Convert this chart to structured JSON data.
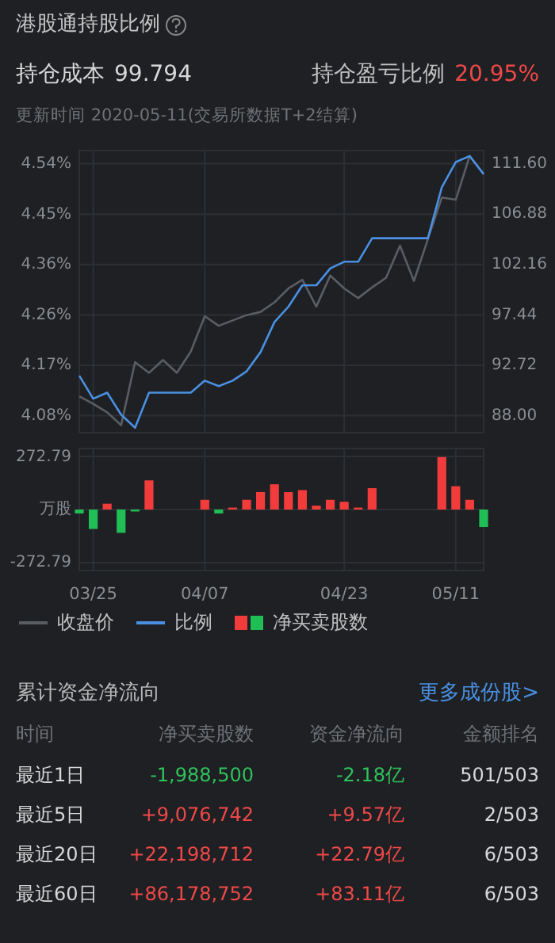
{
  "chart_data": [
    {
      "type": "other",
      "title": "港股通持股比例",
      "annotations": [
        "持仓成本",
        "99.794",
        "持仓盈亏比例",
        "20.95%",
        "更新时间 2020-05-11(交易所数据T+2结算)"
      ]
    },
    {
      "type": "line",
      "categories": [
        null,
        null,
        null,
        null,
        null,
        null,
        null,
        null,
        null,
        null,
        null,
        null,
        null,
        null,
        null,
        null,
        null,
        null,
        null,
        null,
        null,
        null,
        null,
        null,
        null,
        null,
        null,
        null,
        null,
        null
      ],
      "series": [
        {
          "name": "收盘价",
          "color": "#5a5d62",
          "axis": "y2",
          "values": [
            89.8,
            89.1,
            88.3,
            87.1,
            93,
            92,
            93.2,
            92,
            94,
            97.3,
            96.4,
            96.9,
            97.4,
            97.7,
            98.6,
            99.9,
            100.7,
            98.2,
            101.1,
            99.9,
            99,
            100,
            100.9,
            103.9,
            100.6,
            104.5,
            108.4,
            108.2,
            112.3,
            110.6
          ]
        },
        {
          "name": "比例",
          "color": "#4a90e2",
          "values": [
            4.153,
            4.111,
            4.122,
            4.082,
            4.058,
            4.122,
            4.122,
            4.122,
            4.122,
            4.144,
            4.134,
            4.144,
            4.161,
            4.196,
            4.251,
            4.279,
            4.318,
            4.318,
            4.349,
            4.361,
            4.361,
            4.404,
            4.404,
            4.404,
            4.404,
            4.404,
            4.497,
            4.543,
            4.554,
            4.521
          ]
        }
      ],
      "ylim": [
        4.049,
        4.564
      ],
      "yticks": [
        {
          "value": 4.08,
          "label": "4.08%"
        },
        {
          "value": 4.172,
          "label": "4.17%"
        },
        {
          "value": 4.264,
          "label": "4.26%"
        },
        {
          "value": 4.356,
          "label": "4.36%"
        },
        {
          "value": 4.448,
          "label": "4.45%"
        },
        {
          "value": 4.54,
          "label": "4.54%"
        }
      ],
      "y2lim": [
        86.4,
        112.8
      ],
      "y2ticks": [
        {
          "value": 88,
          "label": "88.00"
        },
        {
          "value": 92.72,
          "label": "92.72"
        },
        {
          "value": 97.44,
          "label": "97.44"
        },
        {
          "value": 102.16,
          "label": "102.16"
        },
        {
          "value": 106.88,
          "label": "106.88"
        },
        {
          "value": 111.6,
          "label": "111.60"
        }
      ],
      "grid": true,
      "legend": "bottom",
      "tick_labels": "y"
    },
    {
      "type": "bar",
      "categories": [
        null,
        "03/25",
        null,
        null,
        null,
        null,
        null,
        null,
        null,
        "04/07",
        null,
        null,
        null,
        null,
        null,
        null,
        null,
        null,
        null,
        "04/23",
        null,
        null,
        null,
        null,
        null,
        null,
        null,
        "05/11",
        null,
        null
      ],
      "series": [
        {
          "name": "净买卖股数",
          "values": [
            -20,
            -100,
            30,
            -120,
            -10,
            150,
            null,
            null,
            null,
            50,
            -20,
            10,
            50,
            90,
            130,
            90,
            100,
            20,
            50,
            40,
            10,
            110,
            null,
            null,
            null,
            null,
            270,
            120,
            50,
            -90
          ]
        }
      ],
      "colors": [
        "#1fbf55",
        "#1fbf55",
        "#f23c3c",
        "#1fbf55",
        "#1fbf55",
        "#f23c3c",
        "#f23c3c",
        "#f23c3c",
        "#f23c3c",
        "#f23c3c",
        "#1fbf55",
        "#f23c3c",
        "#f23c3c",
        "#f23c3c",
        "#f23c3c",
        "#f23c3c",
        "#f23c3c",
        "#f23c3c",
        "#f23c3c",
        "#f23c3c",
        "#f23c3c",
        "#f23c3c",
        "#f23c3c",
        "#f23c3c",
        "#f23c3c",
        "#f23c3c",
        "#f23c3c",
        "#f23c3c",
        "#f23c3c",
        "#1fbf55"
      ],
      "ylim": [
        -314,
        314
      ],
      "yticks": [
        {
          "value": -272.79,
          "label": "-272.79"
        },
        {
          "value": 0,
          "label": "万股"
        },
        {
          "value": 272.79,
          "label": "272.79"
        }
      ],
      "grid": true,
      "legend": "bottom"
    },
    {
      "type": "other",
      "title": "累计资金净流向",
      "annotations": [
        "更多成份股>",
        "时间",
        "净买卖股数",
        "资金净流向",
        "金额排名",
        "最近1日",
        "-1,988,500",
        "-2.18亿",
        "501/503",
        "最近5日",
        "+9,076,742",
        "+9.57亿",
        "2/503",
        "最近20日",
        "+22,198,712",
        "+22.79亿",
        "6/503",
        "最近60日",
        "+86,178,752",
        "+83.11亿",
        "6/503"
      ]
    }
  ]
}
